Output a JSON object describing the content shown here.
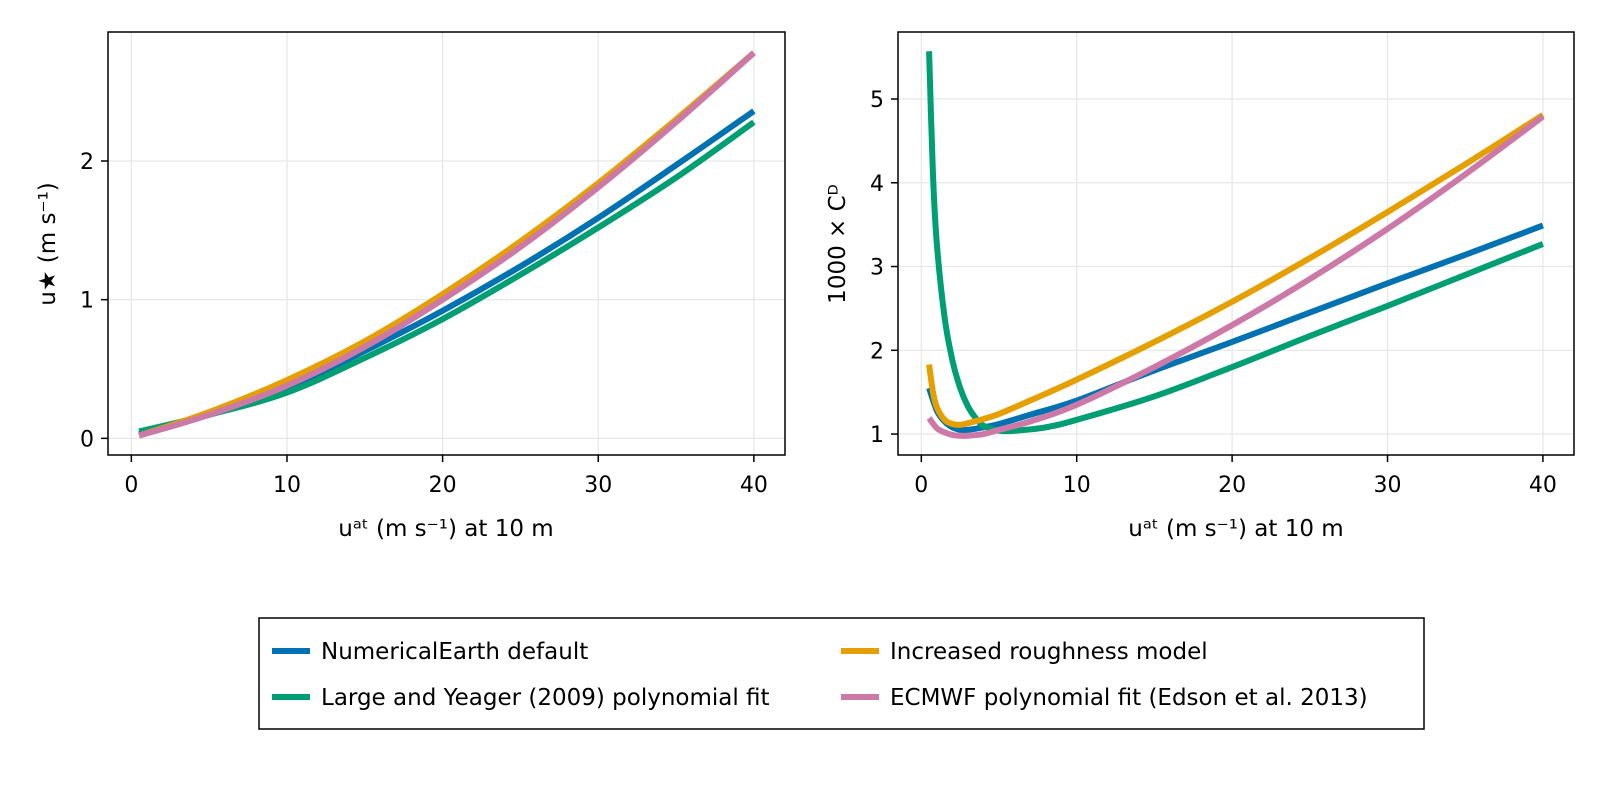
{
  "chart_data": [
    {
      "type": "line",
      "xlabel": "uᵃᵗ (m s⁻¹) at 10 m",
      "ylabel": "u★ (m s⁻¹)",
      "xlim": [
        -1.5,
        42
      ],
      "ylim": [
        -0.12,
        2.93
      ],
      "xticks": [
        0,
        10,
        20,
        30,
        40
      ],
      "xtick_labels": [
        "0",
        "10",
        "20",
        "30",
        "40"
      ],
      "yticks": [
        0,
        1,
        2
      ],
      "ytick_labels": [
        "0",
        "1",
        "2"
      ],
      "grid": true,
      "series": [
        {
          "key": "default",
          "x": [
            0.5,
            5,
            10,
            15,
            20,
            25,
            30,
            35,
            40
          ],
          "values": [
            0.03,
            0.17,
            0.36,
            0.63,
            0.92,
            1.24,
            1.59,
            1.97,
            2.36
          ]
        },
        {
          "key": "large_yeager",
          "x": [
            0.5,
            5,
            10,
            15,
            20,
            25,
            30,
            35,
            40
          ],
          "values": [
            0.05,
            0.17,
            0.33,
            0.58,
            0.86,
            1.18,
            1.52,
            1.88,
            2.28
          ]
        },
        {
          "key": "roughness",
          "x": [
            0.5,
            5,
            10,
            15,
            20,
            25,
            30,
            35,
            40
          ],
          "values": [
            0.02,
            0.19,
            0.42,
            0.7,
            1.04,
            1.42,
            1.84,
            2.3,
            2.78
          ]
        },
        {
          "key": "ecmwf",
          "x": [
            0.5,
            5,
            10,
            15,
            20,
            25,
            30,
            35,
            40
          ],
          "values": [
            0.02,
            0.17,
            0.38,
            0.66,
            1.0,
            1.38,
            1.81,
            2.28,
            2.78
          ]
        }
      ]
    },
    {
      "type": "line",
      "xlabel": "uᵃᵗ (m s⁻¹) at 10 m",
      "ylabel": "1000 × Cᴰ",
      "xlim": [
        -1.5,
        42
      ],
      "ylim": [
        0.75,
        5.8
      ],
      "xticks": [
        0,
        10,
        20,
        30,
        40
      ],
      "xtick_labels": [
        "0",
        "10",
        "20",
        "30",
        "40"
      ],
      "yticks": [
        1,
        2,
        3,
        4,
        5
      ],
      "ytick_labels": [
        "1",
        "2",
        "3",
        "4",
        "5"
      ],
      "grid": true,
      "series": [
        {
          "key": "default",
          "x": [
            0.5,
            1,
            1.5,
            2,
            2.5,
            3,
            4,
            5,
            7,
            10,
            15,
            20,
            25,
            30,
            35,
            40
          ],
          "values": [
            1.55,
            1.28,
            1.15,
            1.08,
            1.05,
            1.05,
            1.08,
            1.12,
            1.23,
            1.4,
            1.76,
            2.1,
            2.45,
            2.8,
            3.14,
            3.49
          ]
        },
        {
          "key": "large_yeager",
          "x": [
            0.5,
            0.75,
            1,
            1.5,
            2,
            2.5,
            3,
            3.5,
            4,
            5,
            6,
            8,
            10,
            15,
            20,
            25,
            30,
            35,
            40
          ],
          "values": [
            5.57,
            4.1,
            3.27,
            2.39,
            1.88,
            1.55,
            1.33,
            1.19,
            1.1,
            1.04,
            1.04,
            1.08,
            1.17,
            1.45,
            1.8,
            2.17,
            2.53,
            2.9,
            3.27
          ]
        },
        {
          "key": "roughness",
          "x": [
            0.5,
            0.75,
            1,
            1.5,
            2,
            2.5,
            3,
            4,
            5,
            7,
            10,
            15,
            20,
            25,
            30,
            35,
            40
          ],
          "values": [
            1.83,
            1.5,
            1.32,
            1.17,
            1.12,
            1.11,
            1.13,
            1.18,
            1.24,
            1.4,
            1.65,
            2.1,
            2.58,
            3.1,
            3.65,
            4.22,
            4.81
          ]
        },
        {
          "key": "ecmwf",
          "x": [
            0.5,
            1,
            1.5,
            2,
            2.5,
            3,
            4,
            5,
            7,
            10,
            15,
            20,
            25,
            30,
            35,
            40
          ],
          "values": [
            1.19,
            1.07,
            1.02,
            0.99,
            0.98,
            0.98,
            1.0,
            1.05,
            1.15,
            1.35,
            1.8,
            2.3,
            2.85,
            3.45,
            4.1,
            4.79
          ]
        }
      ]
    }
  ],
  "legend": {
    "placement": "bottom",
    "items": [
      {
        "key": "default",
        "label": "NumericalEarth default",
        "color": "#0072b2"
      },
      {
        "key": "roughness",
        "label": "Increased roughness model",
        "color": "#e69f00"
      },
      {
        "key": "large_yeager",
        "label": "Large and Yeager (2009) polynomial fit",
        "color": "#009e73"
      },
      {
        "key": "ecmwf",
        "label": "ECMWF polynomial fit (Edson et al. 2013)",
        "color": "#cc79a7"
      }
    ]
  },
  "colors": {
    "grid": "#e6e6e6",
    "frame": "#000000"
  }
}
